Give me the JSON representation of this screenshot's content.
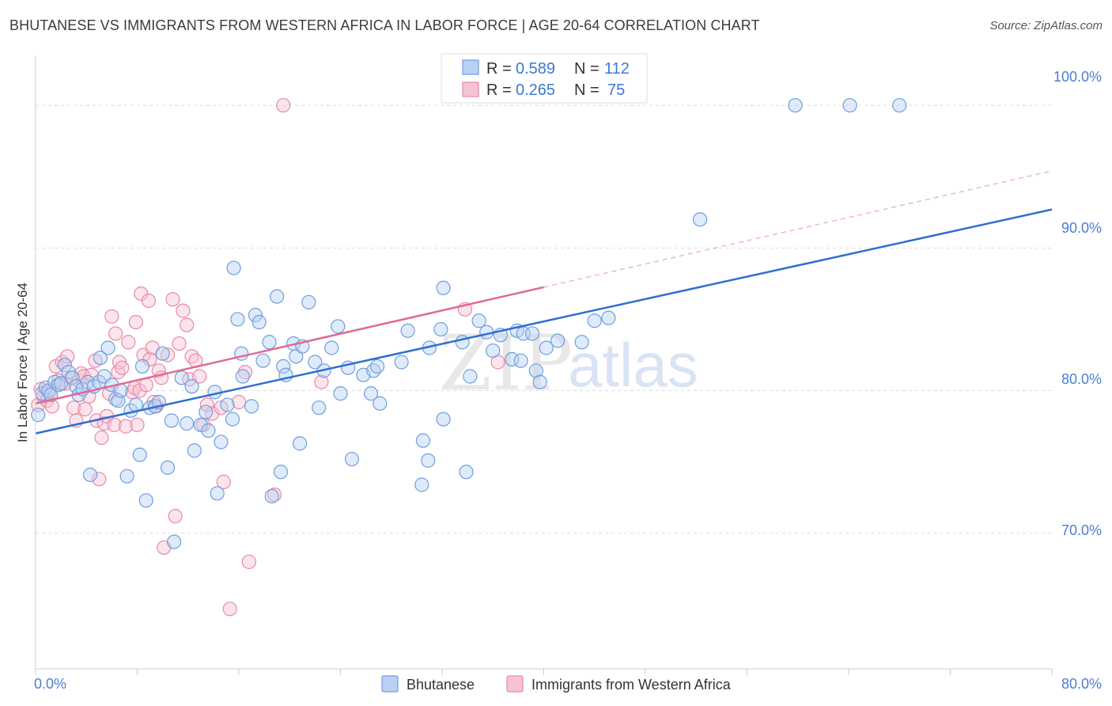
{
  "header": {
    "title": "BHUTANESE VS IMMIGRANTS FROM WESTERN AFRICA IN LABOR FORCE | AGE 20-64 CORRELATION CHART",
    "source": "Source: ZipAtlas.com"
  },
  "watermark": {
    "zip": "ZIP",
    "atlas": "atlas"
  },
  "colors": {
    "blue": "#6f9fdc",
    "blue_fill": "#b8d1f3",
    "blue_line": "#2f6fd0",
    "pink": "#e88aa8",
    "pink_fill": "#f7c3d4",
    "pink_line": "#e06a93",
    "grid": "#dddddd",
    "axis_text": "#4a7fd0"
  },
  "chart_data": {
    "type": "scatter",
    "title": "BHUTANESE VS IMMIGRANTS FROM WESTERN AFRICA IN LABOR FORCE | AGE 20-64 CORRELATION CHART",
    "xlabel": "",
    "ylabel": "In Labor Force | Age 20-64",
    "xlim": [
      0,
      80
    ],
    "ylim": [
      60.5,
      103.5
    ],
    "x_tick_labels": [
      "0.0%",
      "80.0%"
    ],
    "y_ticks": [
      70,
      80,
      90,
      100
    ],
    "y_tick_labels": [
      "70.0%",
      "80.0%",
      "90.0%",
      "100.0%"
    ],
    "grid": true,
    "legend_top": [
      {
        "r_label": "R =",
        "r_value": "0.589",
        "n_label": "N =",
        "n_value": "112"
      },
      {
        "r_label": "R =",
        "r_value": "0.265",
        "n_label": "N =",
        "n_value": "75"
      }
    ],
    "series": [
      {
        "name": "Bhutanese",
        "color": "#6f9fdc",
        "trend": {
          "x": [
            0,
            80
          ],
          "y": [
            77.0,
            92.7
          ],
          "solid_to": 80
        },
        "points": [
          [
            0.2,
            78.3
          ],
          [
            0.5,
            79.8
          ],
          [
            0.8,
            80.2
          ],
          [
            1.0,
            80.0
          ],
          [
            1.2,
            79.7
          ],
          [
            1.5,
            80.6
          ],
          [
            1.8,
            80.4
          ],
          [
            2.0,
            80.5
          ],
          [
            2.3,
            81.8
          ],
          [
            2.6,
            81.3
          ],
          [
            2.9,
            80.9
          ],
          [
            3.2,
            80.3
          ],
          [
            3.4,
            79.7
          ],
          [
            3.7,
            80.1
          ],
          [
            4.1,
            80.6
          ],
          [
            4.3,
            74.1
          ],
          [
            4.6,
            80.3
          ],
          [
            5.0,
            80.6
          ],
          [
            5.1,
            82.3
          ],
          [
            5.4,
            81.0
          ],
          [
            5.7,
            83.0
          ],
          [
            6.0,
            80.4
          ],
          [
            6.3,
            79.4
          ],
          [
            6.5,
            79.3
          ],
          [
            6.7,
            80.0
          ],
          [
            7.2,
            74.0
          ],
          [
            7.5,
            78.6
          ],
          [
            7.9,
            79.0
          ],
          [
            8.2,
            75.5
          ],
          [
            8.4,
            81.7
          ],
          [
            8.7,
            72.3
          ],
          [
            9.0,
            78.8
          ],
          [
            9.4,
            78.9
          ],
          [
            9.7,
            79.2
          ],
          [
            10.0,
            82.6
          ],
          [
            10.4,
            74.6
          ],
          [
            10.7,
            77.9
          ],
          [
            10.9,
            69.4
          ],
          [
            11.5,
            80.9
          ],
          [
            11.9,
            77.7
          ],
          [
            12.3,
            80.3
          ],
          [
            12.5,
            75.8
          ],
          [
            13.0,
            77.6
          ],
          [
            13.4,
            78.5
          ],
          [
            13.6,
            77.2
          ],
          [
            14.1,
            79.9
          ],
          [
            14.3,
            72.8
          ],
          [
            14.6,
            76.4
          ],
          [
            15.1,
            79.0
          ],
          [
            15.5,
            78.0
          ],
          [
            15.6,
            88.6
          ],
          [
            15.9,
            85.0
          ],
          [
            16.2,
            82.6
          ],
          [
            16.3,
            81.0
          ],
          [
            17.0,
            78.9
          ],
          [
            17.3,
            85.3
          ],
          [
            17.6,
            84.8
          ],
          [
            17.9,
            82.1
          ],
          [
            18.4,
            83.4
          ],
          [
            18.6,
            72.6
          ],
          [
            19.0,
            86.6
          ],
          [
            19.3,
            74.3
          ],
          [
            19.5,
            81.7
          ],
          [
            19.7,
            81.1
          ],
          [
            20.3,
            83.3
          ],
          [
            20.5,
            82.4
          ],
          [
            20.8,
            76.3
          ],
          [
            21.0,
            83.1
          ],
          [
            21.5,
            86.2
          ],
          [
            22.0,
            82.0
          ],
          [
            22.3,
            78.8
          ],
          [
            22.7,
            81.4
          ],
          [
            23.3,
            83.0
          ],
          [
            23.8,
            84.5
          ],
          [
            24.0,
            79.8
          ],
          [
            24.6,
            81.6
          ],
          [
            24.9,
            75.2
          ],
          [
            25.8,
            81.1
          ],
          [
            26.4,
            79.8
          ],
          [
            26.6,
            81.4
          ],
          [
            26.9,
            81.7
          ],
          [
            27.1,
            79.1
          ],
          [
            28.8,
            82.0
          ],
          [
            29.3,
            84.2
          ],
          [
            30.5,
            76.5
          ],
          [
            30.9,
            75.1
          ],
          [
            31.0,
            83.0
          ],
          [
            30.4,
            73.4
          ],
          [
            31.9,
            84.3
          ],
          [
            32.1,
            87.2
          ],
          [
            32.1,
            78.0
          ],
          [
            33.6,
            83.4
          ],
          [
            33.9,
            74.3
          ],
          [
            34.2,
            81.0
          ],
          [
            34.9,
            84.9
          ],
          [
            35.5,
            84.1
          ],
          [
            36.0,
            82.8
          ],
          [
            36.6,
            83.9
          ],
          [
            37.5,
            82.2
          ],
          [
            37.9,
            84.2
          ],
          [
            38.2,
            82.1
          ],
          [
            38.4,
            84.0
          ],
          [
            39.1,
            84.0
          ],
          [
            39.4,
            81.4
          ],
          [
            39.7,
            80.6
          ],
          [
            40.2,
            83.0
          ],
          [
            41.1,
            83.5
          ],
          [
            43.0,
            83.4
          ],
          [
            44.0,
            84.9
          ],
          [
            45.1,
            85.1
          ],
          [
            52.3,
            92.0
          ],
          [
            59.8,
            100.0
          ],
          [
            64.1,
            100.0
          ],
          [
            68.0,
            100.0
          ]
        ]
      },
      {
        "name": "Immigrants from Western Africa",
        "color": "#e88aa8",
        "trend": {
          "x": [
            0,
            80
          ],
          "y": [
            79.1,
            95.4
          ],
          "solid_to": 40
        },
        "points": [
          [
            0.2,
            79.0
          ],
          [
            0.4,
            80.1
          ],
          [
            0.6,
            79.6
          ],
          [
            0.9,
            79.3
          ],
          [
            1.1,
            79.9
          ],
          [
            1.3,
            78.9
          ],
          [
            1.6,
            81.7
          ],
          [
            1.8,
            80.7
          ],
          [
            2.1,
            82.0
          ],
          [
            2.3,
            80.5
          ],
          [
            2.5,
            82.4
          ],
          [
            2.8,
            80.9
          ],
          [
            3.0,
            78.8
          ],
          [
            3.2,
            77.9
          ],
          [
            3.4,
            80.7
          ],
          [
            3.6,
            81.2
          ],
          [
            3.8,
            81.0
          ],
          [
            3.9,
            78.7
          ],
          [
            4.2,
            79.6
          ],
          [
            4.4,
            81.1
          ],
          [
            4.7,
            82.1
          ],
          [
            4.8,
            77.9
          ],
          [
            5.0,
            73.8
          ],
          [
            5.2,
            76.7
          ],
          [
            5.4,
            77.7
          ],
          [
            5.6,
            78.2
          ],
          [
            5.8,
            79.8
          ],
          [
            6.0,
            85.2
          ],
          [
            6.2,
            77.6
          ],
          [
            6.3,
            84.0
          ],
          [
            6.5,
            81.3
          ],
          [
            6.6,
            82.0
          ],
          [
            6.8,
            81.6
          ],
          [
            7.1,
            77.5
          ],
          [
            7.3,
            83.4
          ],
          [
            7.6,
            79.9
          ],
          [
            7.8,
            80.2
          ],
          [
            7.9,
            84.8
          ],
          [
            8.0,
            77.6
          ],
          [
            8.2,
            80.0
          ],
          [
            8.3,
            86.8
          ],
          [
            8.5,
            82.5
          ],
          [
            8.7,
            80.4
          ],
          [
            8.9,
            86.3
          ],
          [
            9.0,
            82.2
          ],
          [
            9.2,
            83.0
          ],
          [
            9.3,
            79.2
          ],
          [
            9.5,
            78.9
          ],
          [
            9.7,
            81.4
          ],
          [
            9.9,
            80.9
          ],
          [
            10.1,
            69.0
          ],
          [
            10.4,
            82.5
          ],
          [
            10.8,
            86.4
          ],
          [
            11.0,
            71.2
          ],
          [
            11.3,
            83.3
          ],
          [
            11.6,
            85.6
          ],
          [
            11.9,
            84.6
          ],
          [
            12.1,
            80.8
          ],
          [
            12.3,
            82.4
          ],
          [
            12.6,
            82.1
          ],
          [
            12.9,
            81.0
          ],
          [
            13.2,
            77.6
          ],
          [
            13.5,
            79.0
          ],
          [
            13.9,
            78.4
          ],
          [
            14.6,
            78.8
          ],
          [
            14.8,
            73.6
          ],
          [
            15.3,
            64.7
          ],
          [
            16.0,
            79.2
          ],
          [
            16.5,
            81.3
          ],
          [
            16.8,
            68.0
          ],
          [
            18.8,
            72.7
          ],
          [
            19.5,
            100.0
          ],
          [
            22.5,
            80.6
          ],
          [
            33.8,
            85.7
          ],
          [
            36.4,
            82.0
          ]
        ]
      }
    ]
  },
  "legend": {
    "items": [
      {
        "label": "Bhutanese"
      },
      {
        "label": "Immigrants from Western Africa"
      }
    ]
  }
}
